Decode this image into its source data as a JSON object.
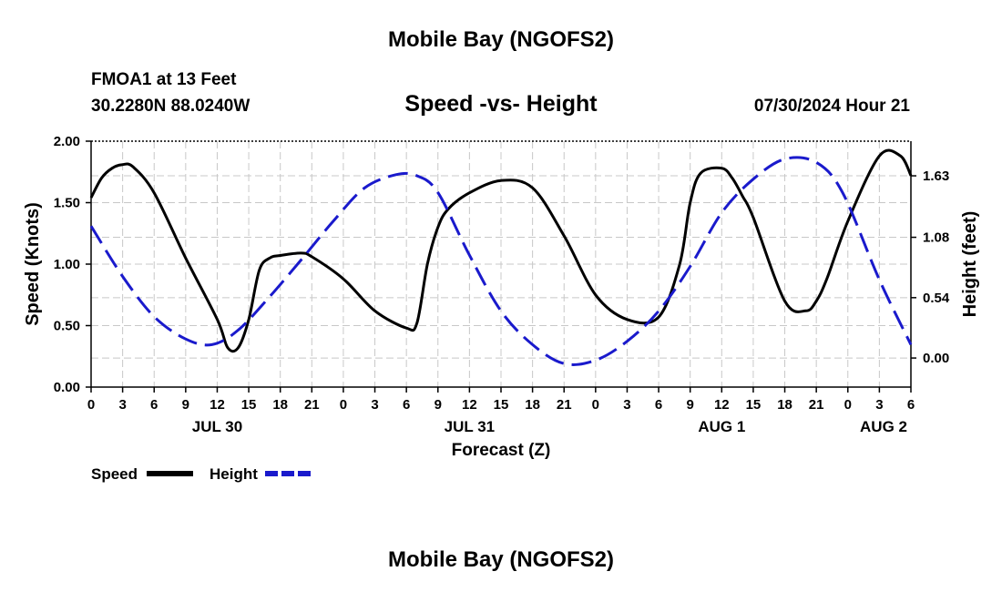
{
  "header": {
    "title": "Mobile Bay (NGOFS2)",
    "station": "FMOA1 at 13 Feet",
    "coordinates": "30.2280N  88.0240W",
    "subtitle": "Speed -vs- Height",
    "datetime": "07/30/2024 Hour 21"
  },
  "footer": {
    "title": "Mobile Bay (NGOFS2)"
  },
  "chart_data": {
    "type": "line",
    "title": "Speed -vs- Height",
    "xlabel": "Forecast (Z)",
    "x_unit": "hours since 2024-07-30 00Z",
    "xlim": [
      0,
      78
    ],
    "x_tick_step": 3,
    "x_tick_labels": [
      "0",
      "3",
      "6",
      "9",
      "12",
      "15",
      "18",
      "21",
      "0",
      "3",
      "6",
      "9",
      "12",
      "15",
      "18",
      "21",
      "0",
      "3",
      "6",
      "9",
      "12",
      "15",
      "18",
      "21",
      "0",
      "3",
      "6"
    ],
    "date_labels": [
      {
        "x": 12,
        "label": "JUL 30"
      },
      {
        "x": 36,
        "label": "JUL 31"
      },
      {
        "x": 60,
        "label": "AUG 1"
      },
      {
        "x": 78,
        "label": "AUG 2"
      }
    ],
    "left_axis": {
      "label": "Speed (Knots)",
      "ylim": [
        0,
        2
      ],
      "ticks": [
        0,
        0.5,
        1,
        1.5,
        2
      ],
      "tick_labels": [
        "0.00",
        "0.50",
        "1.00",
        "1.50",
        "2.00"
      ]
    },
    "right_axis": {
      "label": "Height (feet)",
      "ylim": [
        -0.26,
        1.94
      ],
      "ticks": [
        0,
        0.54,
        1.08,
        1.63
      ],
      "tick_labels": [
        "0.00",
        "0.54",
        "1.08",
        "1.63"
      ]
    },
    "grid": true,
    "legend": [
      {
        "name": "Speed",
        "color": "#000000",
        "style": "solid"
      },
      {
        "name": "Height",
        "color": "#1a1acc",
        "style": "dashed"
      }
    ],
    "series": [
      {
        "name": "Speed",
        "axis": "left",
        "color": "#000000",
        "style": "solid",
        "x": [
          0,
          1,
          2,
          3,
          4,
          6,
          9,
          12,
          13,
          14,
          15,
          16,
          17,
          18,
          20,
          21,
          24,
          27,
          30,
          31,
          32,
          33,
          34,
          36,
          39,
          42,
          45,
          48,
          51,
          54,
          56,
          57,
          58,
          60,
          61,
          62,
          63,
          66,
          68,
          69,
          70,
          72,
          75,
          77,
          78
        ],
        "values": [
          1.54,
          1.7,
          1.78,
          1.81,
          1.79,
          1.58,
          1.05,
          0.55,
          0.32,
          0.32,
          0.55,
          0.95,
          1.05,
          1.07,
          1.09,
          1.06,
          0.88,
          0.62,
          0.48,
          0.52,
          1.0,
          1.3,
          1.45,
          1.58,
          1.68,
          1.62,
          1.23,
          0.75,
          0.55,
          0.57,
          1.0,
          1.5,
          1.74,
          1.78,
          1.7,
          1.55,
          1.38,
          0.7,
          0.62,
          0.7,
          0.88,
          1.35,
          1.88,
          1.88,
          1.72
        ]
      },
      {
        "name": "Height",
        "axis": "right",
        "color": "#1a1acc",
        "style": "dashed",
        "x": [
          0,
          3,
          6,
          9,
          11.5,
          14,
          17,
          20,
          23,
          26,
          29,
          31,
          33,
          36,
          39,
          42,
          45,
          48,
          51,
          54,
          57,
          60,
          63,
          66,
          69,
          71.5,
          75,
          78
        ],
        "values": [
          1.18,
          0.73,
          0.37,
          0.17,
          0.12,
          0.25,
          0.55,
          0.88,
          1.22,
          1.52,
          1.64,
          1.63,
          1.48,
          0.92,
          0.42,
          0.12,
          -0.05,
          -0.02,
          0.15,
          0.42,
          0.82,
          1.3,
          1.6,
          1.78,
          1.75,
          1.48,
          0.7,
          0.12
        ]
      }
    ]
  }
}
